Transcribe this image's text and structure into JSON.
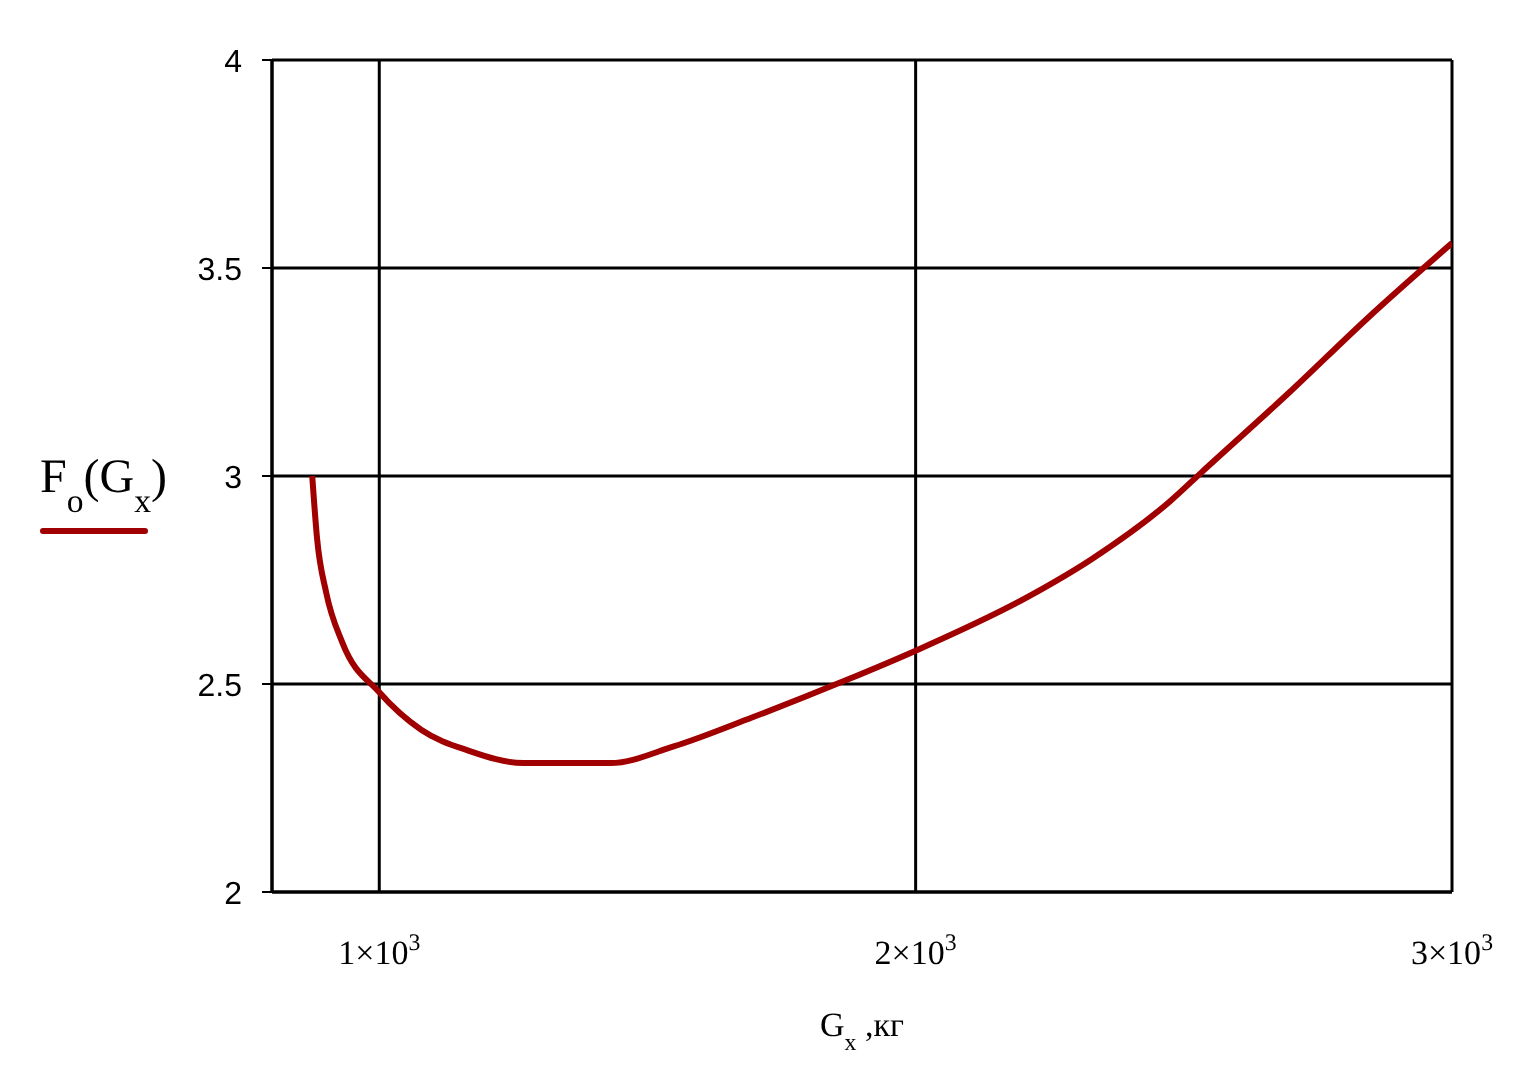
{
  "chart_data": {
    "type": "line",
    "xlabel": "G$_{x}$ ,кг",
    "ylabel": "F$_{о}$(G$_{x}$)",
    "x": [
      875,
      884,
      901,
      931,
      1000,
      1078,
      1166,
      1269,
      1431,
      1549,
      1696,
      1872,
      2000,
      2210,
      2328,
      2475,
      2534,
      2696,
      2843,
      3000
    ],
    "series": [
      {
        "color": "#a00000",
        "values": [
          3.0,
          2.85,
          2.72,
          2.6,
          2.48,
          2.39,
          2.34,
          2.31,
          2.31,
          2.35,
          2.42,
          2.51,
          2.58,
          2.71,
          2.8,
          2.94,
          3.01,
          3.2,
          3.38,
          3.56
        ]
      }
    ],
    "xlim": [
      800,
      3000
    ],
    "xticks": [
      {
        "value": 1000,
        "label": "1×10$^{3}$"
      },
      {
        "value": 2000,
        "label": "2×10$^{3}$"
      },
      {
        "value": 3000,
        "label": "3×10$^{3}$"
      }
    ],
    "ylim": [
      2,
      4
    ],
    "yticks": [
      2,
      2.5,
      3,
      3.5,
      4
    ],
    "grid": true,
    "marker": "none",
    "line_style": "solid"
  }
}
